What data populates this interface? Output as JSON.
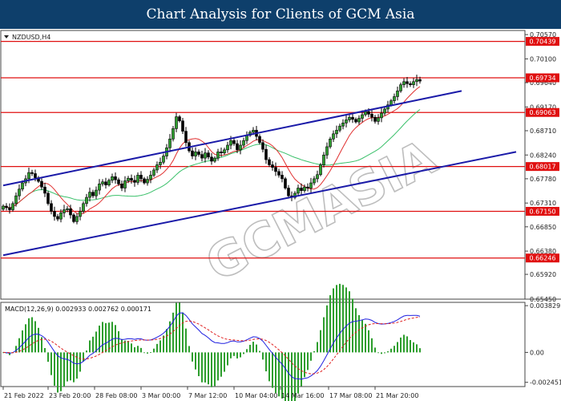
{
  "header": {
    "title": "Chart Analysis for Clients of GCM Asia"
  },
  "watermark": {
    "text": "GCMASIA"
  },
  "colors": {
    "banner": "#0e3f6b",
    "level_line": "#e01010",
    "channel_line": "#1a1aa8",
    "ma_fast": "#e03030",
    "ma_slow": "#3ac06a",
    "macd_line": "#2020e0",
    "signal_line": "#e02020",
    "histogram": "#2e9e2e"
  },
  "chart_data": [
    {
      "type": "candlestick",
      "symbol_label": "NZDUSD,H4",
      "ylim": [
        0.6545,
        0.7065
      ],
      "y_ticks": [
        0.6545,
        0.6593,
        0.6638,
        0.6685,
        0.6731,
        0.6778,
        0.6824,
        0.6871,
        0.6917,
        0.6964,
        0.701,
        0.7057
      ],
      "y_tick_labels": [
        "0.65450",
        "0.65920",
        "0.66380",
        "0.66850",
        "0.67310",
        "0.67780",
        "0.68240",
        "0.68710",
        "0.69170",
        "0.69640",
        "0.70100",
        "0.70570"
      ],
      "x_tick_labels": [
        "21 Feb 2022",
        "23 Feb 20:00",
        "28 Feb 08:00",
        "3 Mar 00:00",
        "7 Mar 12:00",
        "10 Mar 04:00",
        "14 Mar 16:00",
        "17 Mar 08:00",
        "21 Mar 20:00"
      ],
      "levels": [
        {
          "value": 0.70439,
          "label": "0.70439"
        },
        {
          "value": 0.69734,
          "label": "0.69734"
        },
        {
          "value": 0.69063,
          "label": "0.69063"
        },
        {
          "value": 0.68017,
          "label": "0.68017"
        },
        {
          "value": 0.6715,
          "label": "0.67150"
        },
        {
          "value": 0.66246,
          "label": "0.66246"
        }
      ],
      "channel": {
        "upper": [
          [
            0,
            0.6765
          ],
          [
            143,
            0.6948
          ]
        ],
        "lower": [
          [
            0,
            0.663
          ],
          [
            160,
            0.683
          ]
        ]
      },
      "close": [
        0.6725,
        0.6722,
        0.6718,
        0.673,
        0.6745,
        0.6758,
        0.677,
        0.6778,
        0.679,
        0.6788,
        0.678,
        0.6773,
        0.6762,
        0.675,
        0.673,
        0.6715,
        0.6705,
        0.67,
        0.6712,
        0.6718,
        0.672,
        0.6708,
        0.6695,
        0.6705,
        0.6715,
        0.673,
        0.6742,
        0.6752,
        0.6745,
        0.6756,
        0.6768,
        0.6772,
        0.6766,
        0.6775,
        0.6782,
        0.6776,
        0.6768,
        0.676,
        0.6774,
        0.6779,
        0.6775,
        0.6771,
        0.6785,
        0.6778,
        0.677,
        0.6777,
        0.6785,
        0.6795,
        0.6805,
        0.681,
        0.6822,
        0.6838,
        0.6855,
        0.6875,
        0.6898,
        0.689,
        0.687,
        0.6848,
        0.6832,
        0.6822,
        0.683,
        0.6825,
        0.6818,
        0.6828,
        0.682,
        0.6812,
        0.6818,
        0.683,
        0.6828,
        0.6834,
        0.6843,
        0.6852,
        0.6846,
        0.6834,
        0.6843,
        0.6852,
        0.6862,
        0.6868,
        0.6872,
        0.686,
        0.6848,
        0.6835,
        0.6815,
        0.6805,
        0.68,
        0.6792,
        0.6785,
        0.6778,
        0.676,
        0.6745,
        0.6742,
        0.675,
        0.676,
        0.6755,
        0.6762,
        0.676,
        0.677,
        0.6778,
        0.6786,
        0.6805,
        0.6824,
        0.684,
        0.6855,
        0.6865,
        0.6872,
        0.688,
        0.6886,
        0.6892,
        0.6897,
        0.6893,
        0.6888,
        0.6895,
        0.6902,
        0.6908,
        0.6903,
        0.6897,
        0.6889,
        0.6896,
        0.6905,
        0.6913,
        0.6921,
        0.6929,
        0.6937,
        0.6948,
        0.696,
        0.6966,
        0.6962,
        0.696,
        0.6966,
        0.697,
        0.6967
      ]
    },
    {
      "type": "macd",
      "label": "MACD(12,26,9) 0.002933 0.002762 0.000171",
      "ylim": [
        -0.0028,
        0.0041
      ],
      "y_ticks": [
        0.003829,
        0.0,
        -0.002451
      ],
      "y_tick_labels": [
        "0.003829",
        "0.00",
        "-0.002451"
      ]
    }
  ]
}
